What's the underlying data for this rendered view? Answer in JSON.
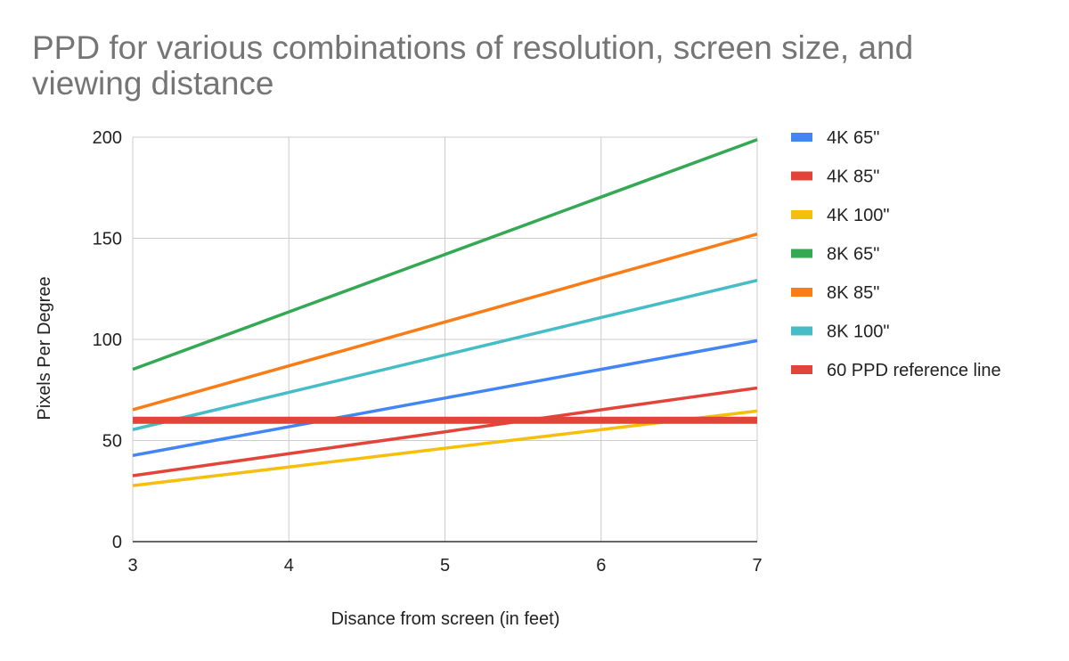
{
  "chart_data": {
    "type": "line",
    "title": "PPD for various combinations of resolution, screen size, and viewing distance",
    "xlabel": "Disance from screen (in feet)",
    "ylabel": "Pixels Per Degree",
    "x": [
      3,
      4,
      5,
      6,
      7
    ],
    "xlim": [
      3,
      7
    ],
    "ylim": [
      0,
      200
    ],
    "x_ticks": [
      "3",
      "4",
      "5",
      "6",
      "7"
    ],
    "y_ticks": [
      "0",
      "50",
      "100",
      "150",
      "200"
    ],
    "grid": true,
    "legend_position": "right",
    "series": [
      {
        "name": "4K 65\"",
        "color": "#4285f4",
        "values": [
          42.6,
          56.8,
          71.0,
          85.2,
          99.4
        ]
      },
      {
        "name": "4K 85\"",
        "color": "#e2443a",
        "values": [
          32.6,
          43.5,
          54.3,
          65.2,
          76.0
        ]
      },
      {
        "name": "4K 100\"",
        "color": "#f6bf0b",
        "values": [
          27.7,
          36.9,
          46.2,
          55.4,
          64.6
        ]
      },
      {
        "name": "8K 65\"",
        "color": "#34a853",
        "values": [
          85.2,
          113.6,
          142.0,
          170.4,
          198.8
        ]
      },
      {
        "name": "8K 85\"",
        "color": "#fa7c16",
        "values": [
          65.2,
          86.9,
          108.6,
          130.4,
          152.1
        ]
      },
      {
        "name": "8K 100\"",
        "color": "#46bdc6",
        "values": [
          55.4,
          73.8,
          92.3,
          110.8,
          129.2
        ]
      },
      {
        "name": "60 PPD reference line",
        "color": "#e2443a",
        "values": [
          60,
          60,
          60,
          60,
          60
        ],
        "thick": true
      }
    ]
  }
}
